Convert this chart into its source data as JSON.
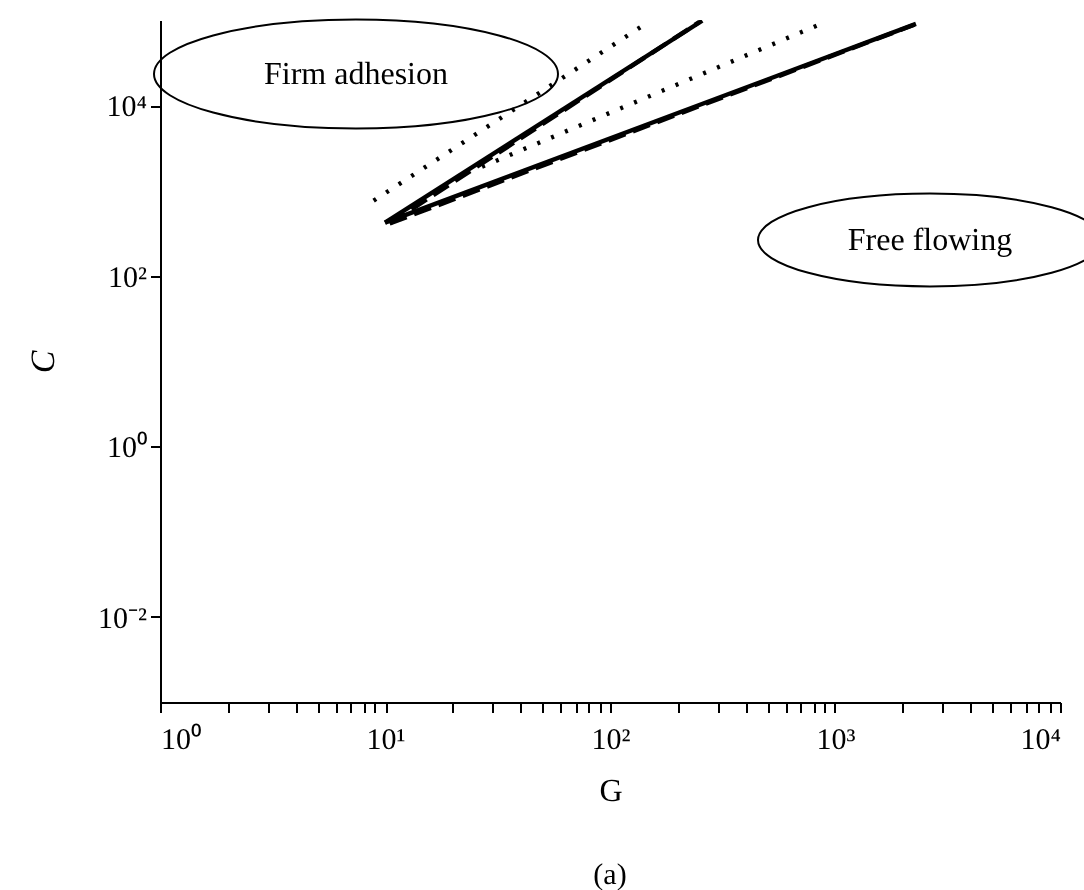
{
  "chart_data": {
    "type": "line",
    "xlabel": "G",
    "ylabel": "C",
    "log": "xy",
    "grid": false,
    "annotations": [
      "Firm adhesion",
      "Free flowing",
      "(a)"
    ],
    "xlim": [
      1,
      10000
    ],
    "ylim": [
      0.001,
      100000
    ],
    "xticks": [
      {
        "value": 1,
        "label": "10⁰"
      },
      {
        "value": 2,
        "label": null
      },
      {
        "value": 3,
        "label": null
      },
      {
        "value": 4,
        "label": null
      },
      {
        "value": 5,
        "label": null
      },
      {
        "value": 6,
        "label": null
      },
      {
        "value": 7,
        "label": null
      },
      {
        "value": 8,
        "label": null
      },
      {
        "value": 9,
        "label": null
      },
      {
        "value": 10,
        "label": "10¹"
      },
      {
        "value": 20,
        "label": null
      },
      {
        "value": 30,
        "label": null
      },
      {
        "value": 40,
        "label": null
      },
      {
        "value": 50,
        "label": null
      },
      {
        "value": 60,
        "label": null
      },
      {
        "value": 70,
        "label": null
      },
      {
        "value": 80,
        "label": null
      },
      {
        "value": 90,
        "label": null
      },
      {
        "value": 100,
        "label": "10²"
      },
      {
        "value": 200,
        "label": null
      },
      {
        "value": 300,
        "label": null
      },
      {
        "value": 400,
        "label": null
      },
      {
        "value": 500,
        "label": null
      },
      {
        "value": 600,
        "label": null
      },
      {
        "value": 700,
        "label": null
      },
      {
        "value": 800,
        "label": null
      },
      {
        "value": 900,
        "label": null
      },
      {
        "value": 1000,
        "label": "10³"
      },
      {
        "value": 2000,
        "label": null
      },
      {
        "value": 3000,
        "label": null
      },
      {
        "value": 4000,
        "label": null
      },
      {
        "value": 5000,
        "label": null
      },
      {
        "value": 6000,
        "label": null
      },
      {
        "value": 7000,
        "label": null
      },
      {
        "value": 8000,
        "label": null
      },
      {
        "value": 9000,
        "label": null
      },
      {
        "value": 10000,
        "label": "10⁴"
      }
    ],
    "yticks": [
      {
        "value": 0.01,
        "label": "10⁻²"
      },
      {
        "value": 1,
        "label": "10⁰"
      },
      {
        "value": 100,
        "label": "10²"
      },
      {
        "value": 10000,
        "label": "10⁴"
      }
    ],
    "series": [
      {
        "color": "#000000",
        "line_style": "solid",
        "x": [
          10,
          257
        ],
        "values": [
          420,
          98000
        ]
      },
      {
        "color": "#000000",
        "line_style": "solid",
        "x": [
          10,
          2290
        ],
        "values": [
          420,
          90000
        ]
      },
      {
        "color": "#000000",
        "line_style": "dashed",
        "x": [
          10.5,
          250
        ],
        "values": [
          410,
          95000
        ]
      },
      {
        "color": "#000000",
        "line_style": "dashed",
        "x": [
          10.5,
          2250
        ],
        "values": [
          410,
          88000
        ]
      },
      {
        "color": "#000000",
        "line_style": "dotted",
        "x": [
          8.9,
          141
        ],
        "values": [
          760,
          87000
        ]
      },
      {
        "color": "#000000",
        "line_style": "dotted",
        "x": [
          27,
          840
        ],
        "values": [
          1900,
          87000
        ]
      }
    ]
  }
}
